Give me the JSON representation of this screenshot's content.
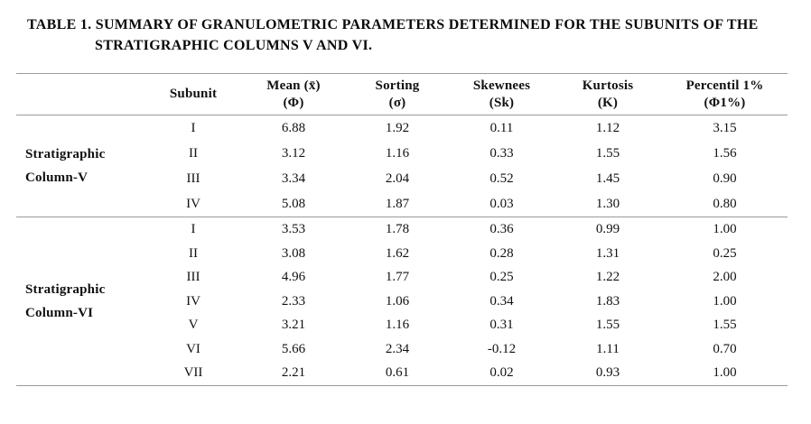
{
  "title": {
    "line1": "TABLE 1. SUMMARY OF GRANULOMETRIC PARAMETERS DETERMINED FOR THE SUBUNITS OF THE",
    "line2": "STRATIGRAPHIC COLUMNS V AND VI."
  },
  "table": {
    "headers": [
      {
        "line1": "Subunit",
        "line2": ""
      },
      {
        "line1": "Mean (x̄)",
        "line2": "(Φ)"
      },
      {
        "line1": "Sorting",
        "line2": "(σ)"
      },
      {
        "line1": "Skewnees",
        "line2": "(Sk)"
      },
      {
        "line1": "Kurtosis",
        "line2": "(K)"
      },
      {
        "line1": "Percentil 1%",
        "line2": "(Φ1%)"
      }
    ],
    "sections": [
      {
        "label": {
          "line1": "Stratigraphic",
          "line2": "Column-V"
        },
        "rows": [
          {
            "subunit": "I",
            "mean": "6.88",
            "sorting": "1.92",
            "skewnees": "0.11",
            "kurtosis": "1.12",
            "percentil": "3.15"
          },
          {
            "subunit": "II",
            "mean": "3.12",
            "sorting": "1.16",
            "skewnees": "0.33",
            "kurtosis": "1.55",
            "percentil": "1.56"
          },
          {
            "subunit": "III",
            "mean": "3.34",
            "sorting": "2.04",
            "skewnees": "0.52",
            "kurtosis": "1.45",
            "percentil": "0.90"
          },
          {
            "subunit": "IV",
            "mean": "5.08",
            "sorting": "1.87",
            "skewnees": "0.03",
            "kurtosis": "1.30",
            "percentil": "0.80"
          }
        ]
      },
      {
        "label": {
          "line1": "Stratigraphic",
          "line2": "Column-VI"
        },
        "rows": [
          {
            "subunit": "I",
            "mean": "3.53",
            "sorting": "1.78",
            "skewnees": "0.36",
            "kurtosis": "0.99",
            "percentil": "1.00"
          },
          {
            "subunit": "II",
            "mean": "3.08",
            "sorting": "1.62",
            "skewnees": "0.28",
            "kurtosis": "1.31",
            "percentil": "0.25"
          },
          {
            "subunit": "III",
            "mean": "4.96",
            "sorting": "1.77",
            "skewnees": "0.25",
            "kurtosis": "1.22",
            "percentil": "2.00"
          },
          {
            "subunit": "IV",
            "mean": "2.33",
            "sorting": "1.06",
            "skewnees": "0.34",
            "kurtosis": "1.83",
            "percentil": "1.00"
          },
          {
            "subunit": "V",
            "mean": "3.21",
            "sorting": "1.16",
            "skewnees": "0.31",
            "kurtosis": "1.55",
            "percentil": "1.55"
          },
          {
            "subunit": "VI",
            "mean": "5.66",
            "sorting": "2.34",
            "skewnees": "-0.12",
            "kurtosis": "1.11",
            "percentil": "0.70"
          },
          {
            "subunit": "VII",
            "mean": "2.21",
            "sorting": "0.61",
            "skewnees": "0.02",
            "kurtosis": "0.93",
            "percentil": "1.00"
          }
        ]
      }
    ]
  },
  "colors": {
    "rule": "#9a9a9a",
    "text": "#111111",
    "background": "#ffffff"
  }
}
